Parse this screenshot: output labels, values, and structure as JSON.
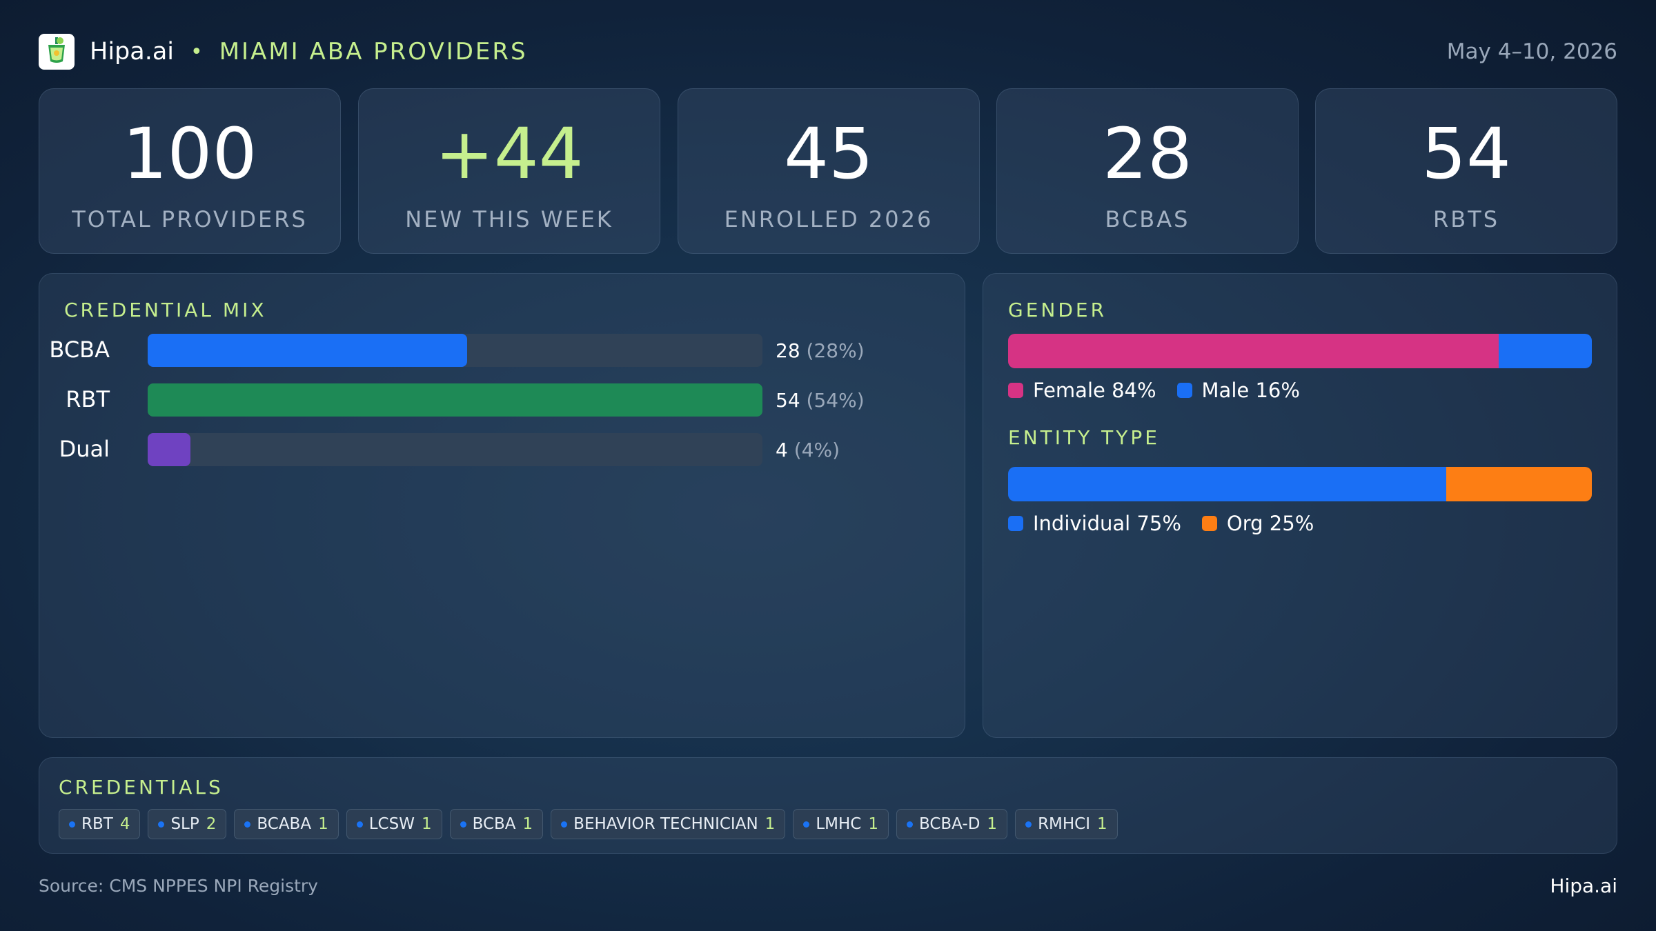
{
  "header": {
    "brand": "Hipa.ai",
    "separator": "•",
    "subtitle": "MIAMI ABA PROVIDERS",
    "date": "May 4–10, 2026",
    "logo_icon": "cocktail-cup-icon"
  },
  "stats": [
    {
      "value": "100",
      "label": "TOTAL PROVIDERS"
    },
    {
      "value": "+44",
      "label": "NEW THIS WEEK"
    },
    {
      "value": "45",
      "label": "ENROLLED 2026"
    },
    {
      "value": "28",
      "label": "BCBAS"
    },
    {
      "value": "54",
      "label": "RBTS"
    }
  ],
  "credential_mix": {
    "title": "CREDENTIAL MIX",
    "rows": [
      {
        "label": "BCBA",
        "count": "28",
        "pct": "(28%)",
        "fraction": 0.52,
        "color": "#1a6ff5"
      },
      {
        "label": "RBT",
        "count": "54",
        "pct": "(54%)",
        "fraction": 1.0,
        "color": "#1e8a56"
      },
      {
        "label": "Dual",
        "count": "4",
        "pct": "(4%)",
        "fraction": 0.07,
        "color": "#6f42c1"
      }
    ]
  },
  "gender": {
    "title": "GENDER",
    "segments": [
      {
        "label": "Female 84%",
        "value": 84,
        "color": "#d63384"
      },
      {
        "label": "Male 16%",
        "value": 16,
        "color": "#1a6ff5"
      }
    ]
  },
  "entity_type": {
    "title": "ENTITY TYPE",
    "segments": [
      {
        "label": "Individual 75%",
        "value": 75,
        "color": "#1a6ff5"
      },
      {
        "label": "Org 25%",
        "value": 25,
        "color": "#fd7e14"
      }
    ]
  },
  "credentials": {
    "title": "CREDENTIALS",
    "chips": [
      {
        "name": "RBT",
        "count": "4"
      },
      {
        "name": "SLP",
        "count": "2"
      },
      {
        "name": "BCABA",
        "count": "1"
      },
      {
        "name": "LCSW",
        "count": "1"
      },
      {
        "name": "BCBA",
        "count": "1"
      },
      {
        "name": "BEHAVIOR TECHNICIAN",
        "count": "1"
      },
      {
        "name": "LMHC",
        "count": "1"
      },
      {
        "name": "BCBA-D",
        "count": "1"
      },
      {
        "name": "RMHCI",
        "count": "1"
      }
    ]
  },
  "footer": {
    "source": "Source: CMS NPPES NPI Registry",
    "brand": "Hipa.ai"
  }
}
